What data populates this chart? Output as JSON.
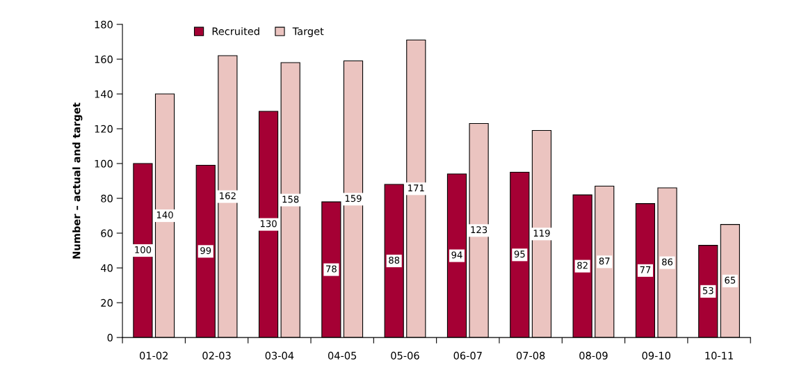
{
  "chart_data": {
    "type": "bar",
    "ylabel": "Number – actual and target",
    "categories": [
      "01-02",
      "02-03",
      "03-04",
      "04-05",
      "05-06",
      "06-07",
      "07-08",
      "08-09",
      "09-10",
      "10-11"
    ],
    "series": [
      {
        "name": "Recruited",
        "color": "#a50034",
        "values": [
          100,
          99,
          130,
          78,
          88,
          94,
          95,
          82,
          77,
          53
        ]
      },
      {
        "name": "Target",
        "color": "#ebc4c0",
        "values": [
          140,
          162,
          158,
          159,
          171,
          123,
          119,
          87,
          86,
          65
        ]
      }
    ],
    "ylim": [
      0,
      180
    ],
    "yticks": [
      0,
      20,
      40,
      60,
      80,
      100,
      120,
      140,
      160,
      180
    ],
    "grid": false,
    "legend": "top left",
    "data_labels": true
  }
}
